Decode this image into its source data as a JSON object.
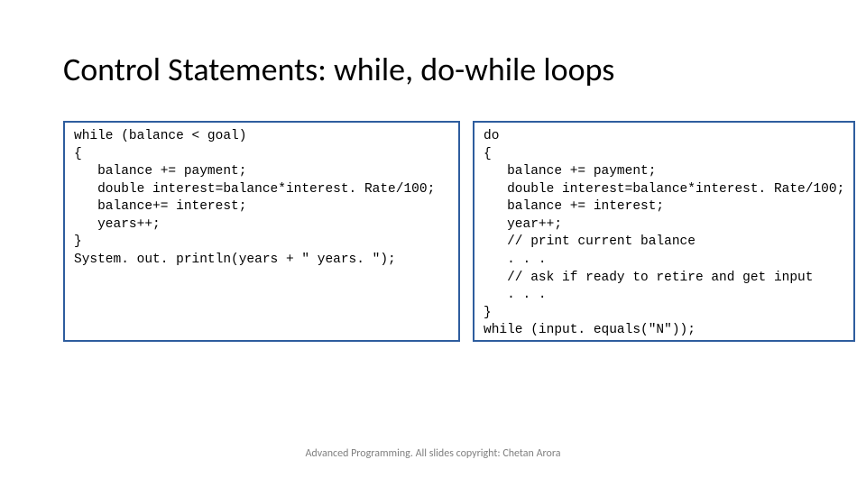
{
  "slide": {
    "title": "Control Statements: while, do-while loops",
    "footer": "Advanced Programming. All slides copyright: Chetan Arora"
  },
  "code": {
    "left": "while (balance < goal)\n{\n   balance += payment;\n   double interest=balance*interest. Rate/100;\n   balance+= interest;\n   years++;\n}\nSystem. out. println(years + \" years. \");",
    "right": "do\n{\n   balance += payment;\n   double interest=balance*interest. Rate/100;\n   balance += interest;\n   year++;\n   // print current balance\n   . . .\n   // ask if ready to retire and get input\n   . . .\n}\nwhile (input. equals(\"N\"));"
  },
  "styling": {
    "title_fontsize": 36,
    "title_color": "#000000",
    "code_fontsize": 14.5,
    "code_fontfamily": "Courier New",
    "box_border_color": "#2e5d9e",
    "box_border_width": 2,
    "background_color": "#ffffff",
    "footer_fontsize": 12,
    "footer_color": "#808080"
  }
}
